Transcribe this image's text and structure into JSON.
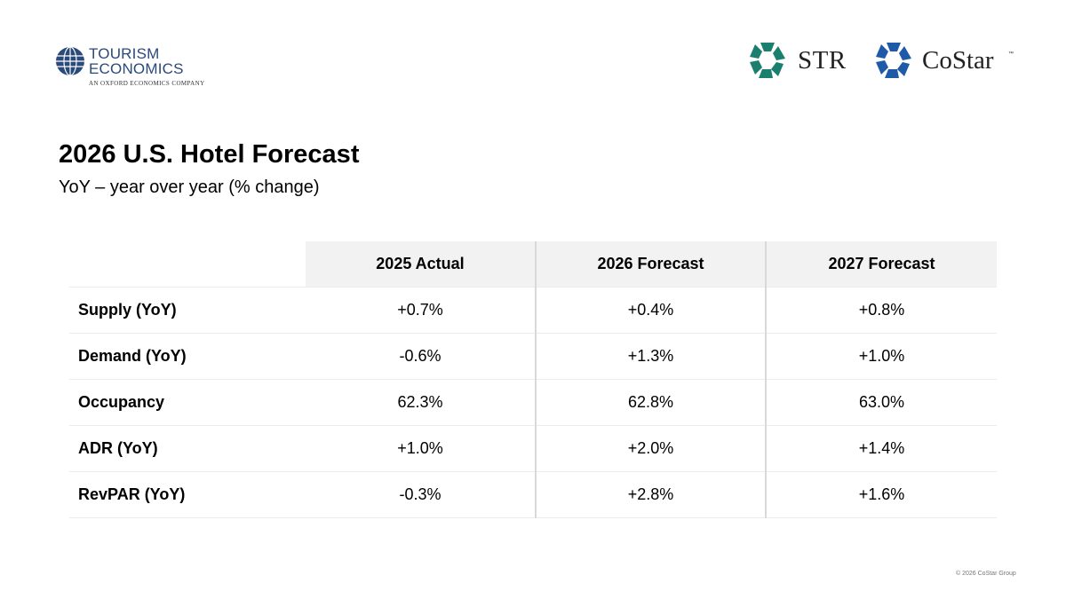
{
  "header": {
    "te_logo": {
      "line1": "TOURISM",
      "line2": "ECONOMICS",
      "sub": "AN OXFORD ECONOMICS COMPANY"
    },
    "str_logo": {
      "text": "STR",
      "color": "#1a7f6e"
    },
    "costar_logo": {
      "text": "CoStar",
      "tm": "™",
      "color": "#1e5aa8"
    }
  },
  "title": "2026 U.S. Hotel Forecast",
  "subtitle": "YoY – year over year (% change)",
  "table": {
    "columns": [
      "2025 Actual",
      "2026 Forecast",
      "2027 Forecast"
    ],
    "rows": [
      {
        "label": "Supply (YoY)",
        "values": [
          "+0.7%",
          "+0.4%",
          "+0.8%"
        ]
      },
      {
        "label": "Demand (YoY)",
        "values": [
          "-0.6%",
          "+1.3%",
          "+1.0%"
        ]
      },
      {
        "label": "Occupancy",
        "values": [
          "62.3%",
          "62.8%",
          "63.0%"
        ]
      },
      {
        "label": "ADR (YoY)",
        "values": [
          "+1.0%",
          "+2.0%",
          "+1.4%"
        ]
      },
      {
        "label": "RevPAR (YoY)",
        "values": [
          "-0.3%",
          "+2.8%",
          "+1.6%"
        ]
      }
    ]
  },
  "footer": {
    "copyright": "© 2026 CoStar Group"
  }
}
